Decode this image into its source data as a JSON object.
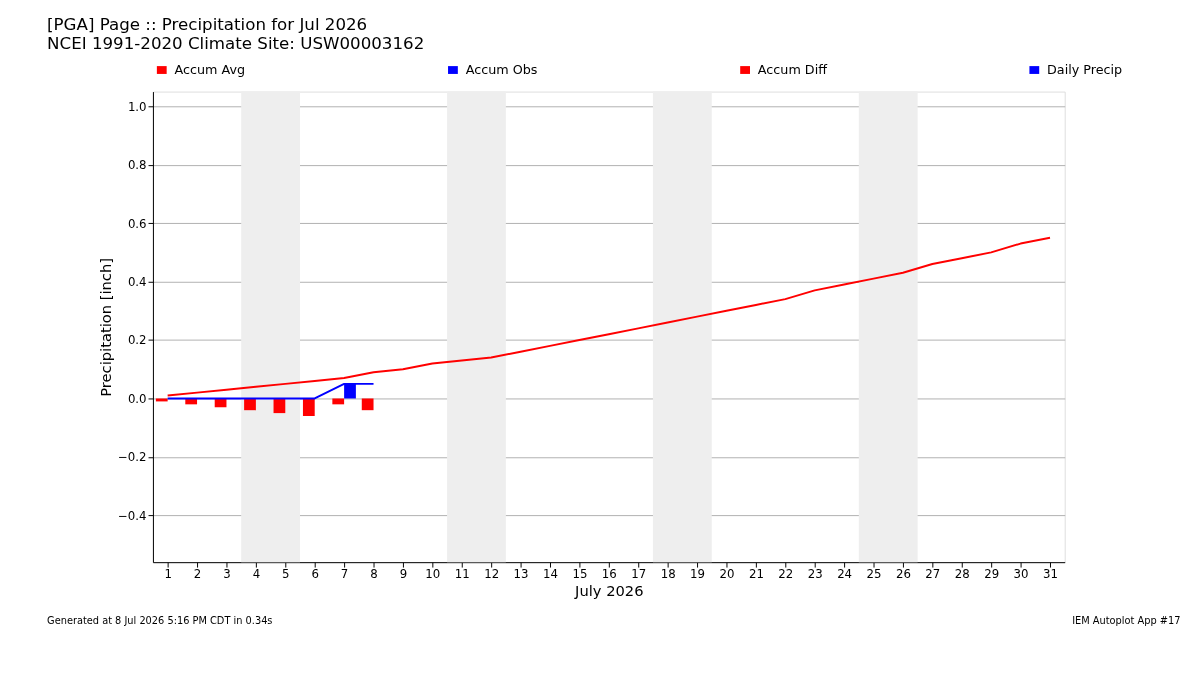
{
  "chart_data": {
    "type": "line",
    "title": "[PGA] Page :: Precipitation for Jul 2026",
    "subtitle": "NCEI 1991-2020 Climate Site: USW00003162",
    "xlabel": "July 2026",
    "ylabel": "Precipitation [inch]",
    "x": [
      1,
      2,
      3,
      4,
      5,
      6,
      7,
      8,
      9,
      10,
      11,
      12,
      13,
      14,
      15,
      16,
      17,
      18,
      19,
      20,
      21,
      22,
      23,
      24,
      25,
      26,
      27,
      28,
      29,
      30,
      31
    ],
    "series": [
      {
        "name": "Accum Avg",
        "color": "#ff0000",
        "values": [
          0.01,
          0.02,
          0.03,
          0.04,
          0.05,
          0.06,
          0.07,
          0.09,
          0.1,
          0.12,
          0.13,
          0.14,
          0.16,
          0.18,
          0.2,
          0.22,
          0.24,
          0.26,
          0.28,
          0.3,
          0.32,
          0.34,
          0.37,
          0.39,
          0.41,
          0.43,
          0.46,
          0.48,
          0.5,
          0.53,
          0.55
        ]
      },
      {
        "name": "Accum Obs",
        "color": "#0000ff",
        "x": [
          1,
          2,
          3,
          4,
          5,
          6,
          7,
          8
        ],
        "values": [
          0,
          0,
          0,
          0,
          0,
          0,
          0.05,
          0.05
        ]
      },
      {
        "name": "Accum Diff",
        "type": "bar",
        "color": "#ff0000",
        "x": [
          1,
          2,
          3,
          4,
          5,
          6,
          7,
          8
        ],
        "values": [
          -0.01,
          -0.02,
          -0.03,
          -0.04,
          -0.05,
          -0.06,
          -0.02,
          -0.04
        ]
      },
      {
        "name": "Daily Precip",
        "type": "bar",
        "color": "#0000ff",
        "x": [
          1,
          2,
          3,
          4,
          5,
          6,
          7,
          8
        ],
        "values": [
          0,
          0,
          0,
          0,
          0,
          0,
          0.05,
          0
        ]
      }
    ],
    "xlim": [
      0.5,
      31.5
    ],
    "xticks": [
      1,
      2,
      3,
      4,
      5,
      6,
      7,
      8,
      9,
      10,
      11,
      12,
      13,
      14,
      15,
      16,
      17,
      18,
      19,
      20,
      21,
      22,
      23,
      24,
      25,
      26,
      27,
      28,
      29,
      30,
      31
    ],
    "ylim": [
      -0.56,
      1.05
    ],
    "yticks": [
      -0.4,
      -0.2,
      {
        "value": 0,
        "label": "0.0"
      },
      0.2,
      0.4,
      0.6,
      0.8,
      {
        "value": 1,
        "label": "1.0"
      }
    ],
    "bands": [
      {
        "axis": "x",
        "from": 3.5,
        "to": 5.5,
        "color": "#eeeeee"
      },
      {
        "axis": "x",
        "from": 10.5,
        "to": 12.5,
        "color": "#eeeeee"
      },
      {
        "axis": "x",
        "from": 17.5,
        "to": 19.5,
        "color": "#eeeeee"
      },
      {
        "axis": "x",
        "from": 24.5,
        "to": 26.5,
        "color": "#eeeeee"
      }
    ],
    "grid": "y",
    "legend": "top",
    "annotations": [
      "Generated at 8 Jul 2026 5:16 PM CDT in 0.34s",
      "IEM Autoplot App #17"
    ]
  }
}
